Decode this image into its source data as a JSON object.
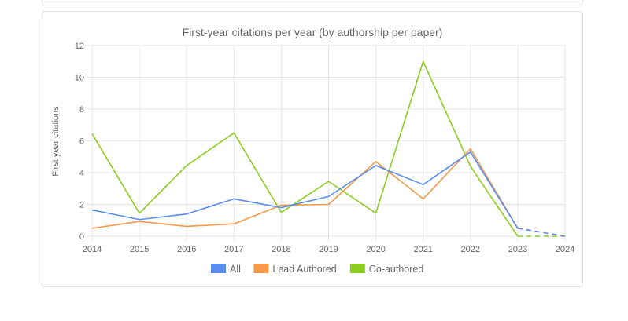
{
  "chart_data": {
    "type": "line",
    "title": "First-year citations per year (by authorship per paper)",
    "xlabel": "",
    "ylabel": "First year citations",
    "x": [
      "2014",
      "2015",
      "2016",
      "2017",
      "2018",
      "2019",
      "2020",
      "2021",
      "2022",
      "2023",
      "2024"
    ],
    "ylim": [
      0,
      12
    ],
    "yticks": [
      "0",
      "2",
      "4",
      "6",
      "8",
      "10",
      "12"
    ],
    "grid": true,
    "legend_position": "bottom",
    "series": [
      {
        "name": "All",
        "color": "#5b8def",
        "values": [
          1.65,
          1.05,
          1.4,
          2.35,
          1.8,
          2.5,
          4.45,
          3.25,
          5.3,
          0.5,
          0.0
        ],
        "dashed_from_index": 9
      },
      {
        "name": "Lead Authored",
        "color": "#f5994a",
        "values": [
          0.5,
          0.93,
          0.62,
          0.78,
          1.95,
          2.0,
          4.7,
          2.35,
          5.5,
          0.5,
          0.0
        ],
        "dashed_from_index": 9
      },
      {
        "name": "Co-authored",
        "color": "#8ccd22",
        "values": [
          6.45,
          1.45,
          4.45,
          6.5,
          1.5,
          3.45,
          1.45,
          11.0,
          4.4,
          0.0,
          0.0
        ],
        "dashed_from_index": 9
      }
    ],
    "annotations": [
      "2023-2024 segment drawn dashed (projected)"
    ]
  },
  "legend": {
    "items": [
      {
        "label": "All",
        "color": "#5b8def"
      },
      {
        "label": "Lead Authored",
        "color": "#f5994a"
      },
      {
        "label": "Co-authored",
        "color": "#8ccd22"
      }
    ]
  }
}
